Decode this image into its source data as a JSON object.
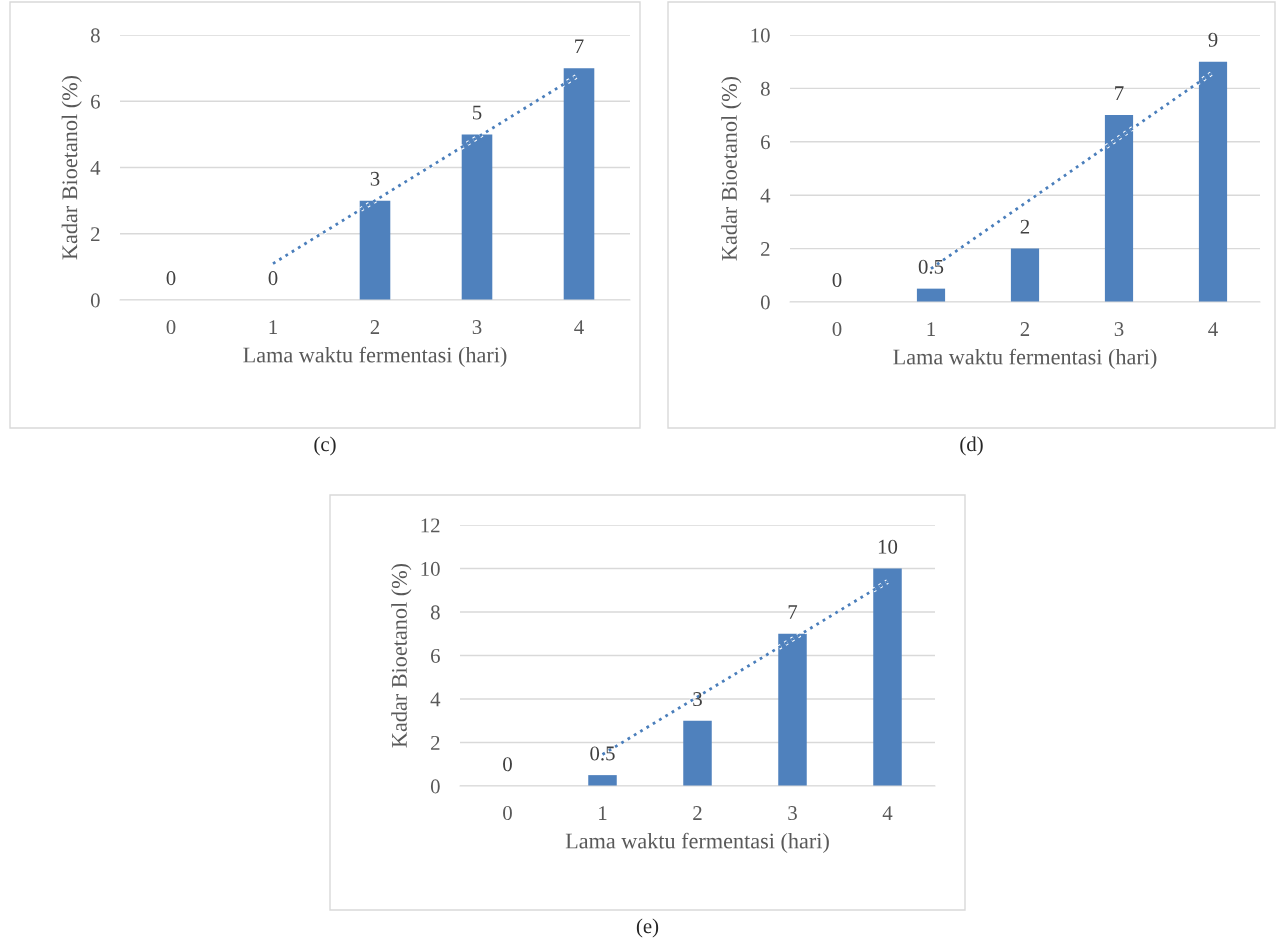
{
  "chart_data": [
    {
      "type": "bar",
      "categories": [
        "0",
        "1",
        "2",
        "3",
        "4"
      ],
      "xlabel": "Lama waktu fermentasi (hari)",
      "ylabel": "Kadar Bioetanol (%)",
      "ylim": [
        0,
        8
      ],
      "yticks": [
        0,
        2,
        4,
        6,
        8
      ],
      "grid": "y",
      "legend": false,
      "annotations": [
        "(c)"
      ],
      "series": [
        {
          "type": "bar",
          "color": "#4f81bd",
          "values": [
            0,
            0,
            3,
            5,
            7
          ],
          "value_labels": [
            "0",
            "0",
            "3",
            "5",
            "7"
          ]
        },
        {
          "type": "line",
          "color": "#4a7ebb",
          "line_style": "dotted",
          "values": [
            null,
            1.1,
            3.0,
            4.9,
            6.8
          ]
        }
      ]
    },
    {
      "type": "bar",
      "categories": [
        "0",
        "1",
        "2",
        "3",
        "4"
      ],
      "xlabel": "Lama waktu fermentasi (hari)",
      "ylabel": "Kadar Bioetanol (%)",
      "ylim": [
        0,
        10
      ],
      "yticks": [
        0,
        2,
        4,
        6,
        8,
        10
      ],
      "grid": "y",
      "legend": false,
      "annotations": [
        "(d)"
      ],
      "series": [
        {
          "color": "#4f81bd",
          "values": [
            0,
            0.5,
            2,
            7,
            9
          ],
          "value_labels": [
            "0",
            "0.5",
            "2",
            "7",
            "9"
          ]
        },
        {
          "type": "line",
          "color": "#4a7ebb",
          "line_style": "dotted",
          "values": [
            null,
            1.25,
            3.7,
            6.15,
            8.6
          ]
        }
      ]
    },
    {
      "type": "bar",
      "categories": [
        "0",
        "1",
        "2",
        "3",
        "4"
      ],
      "xlabel": "Lama waktu fermentasi (hari)",
      "ylabel": "Kadar Bioetanol (%)",
      "ylim": [
        0,
        12
      ],
      "yticks": [
        0,
        2,
        4,
        6,
        8,
        10,
        12
      ],
      "grid": "y",
      "legend": false,
      "annotations": [
        "(e)"
      ],
      "series": [
        {
          "type": "bar",
          "color": "#4f81bd",
          "values": [
            0,
            0.5,
            3,
            7,
            10
          ],
          "value_labels": [
            "0",
            "0.5",
            "3",
            "7",
            "10"
          ]
        },
        {
          "type": "line",
          "color": "#4a7ebb",
          "line_style": "dotted",
          "values": [
            null,
            1.45,
            4.1,
            6.75,
            9.4
          ]
        }
      ]
    }
  ]
}
